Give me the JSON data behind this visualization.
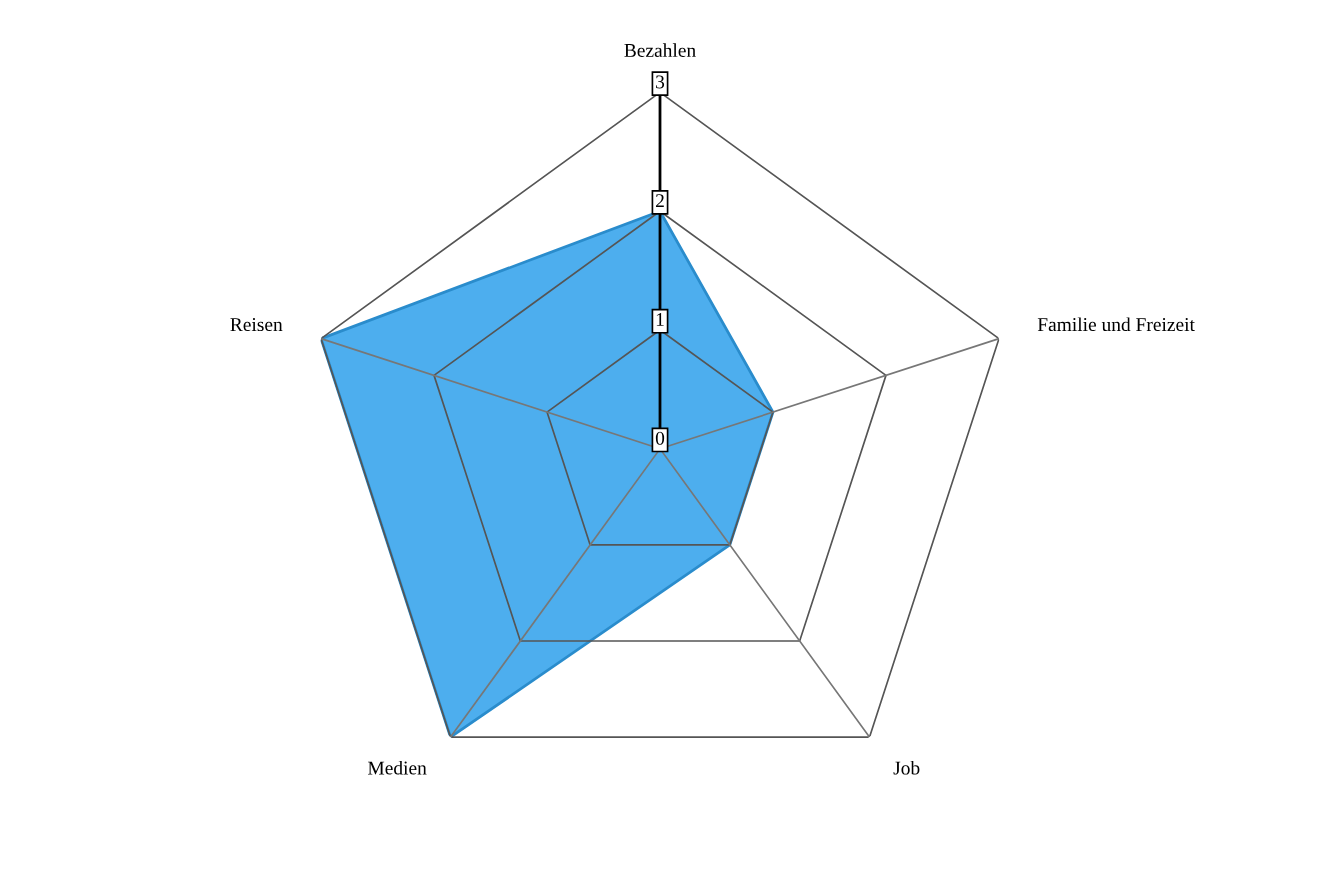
{
  "chart_data": {
    "type": "radar",
    "categories": [
      "Bezahlen",
      "Familie und Freizeit",
      "Job",
      "Medien",
      "Reisen"
    ],
    "series": [
      {
        "color": "#4daeee",
        "values": [
          2,
          1,
          1,
          3,
          3
        ]
      }
    ],
    "ylim": [
      0,
      3
    ],
    "yticks": [
      0,
      1,
      2,
      3
    ],
    "grid": true
  }
}
